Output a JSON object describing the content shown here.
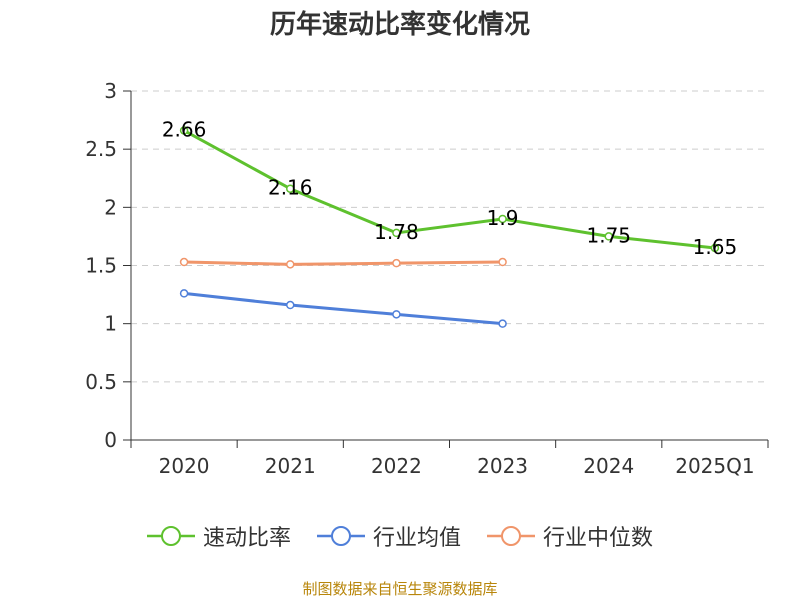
{
  "title": "历年速动比率变化情况",
  "source": "制图数据来自恒生聚源数据库",
  "chart_data": {
    "type": "line",
    "categories": [
      "2020",
      "2021",
      "2022",
      "2023",
      "2024",
      "2025Q1"
    ],
    "ylim": [
      0,
      3
    ],
    "yticks": [
      "0",
      "0.5",
      "1",
      "1.5",
      "2",
      "2.5",
      "3"
    ],
    "grid": true,
    "legend_position": "bottom",
    "series": [
      {
        "name": "速动比率",
        "color": "#5ec12e",
        "values": [
          2.66,
          2.16,
          1.78,
          1.9,
          1.75,
          1.65
        ],
        "labels": [
          "2.66",
          "2.16",
          "1.78",
          "1.9",
          "1.75",
          "1.65"
        ]
      },
      {
        "name": "行业均值",
        "color": "#4f7fd9",
        "values": [
          1.26,
          1.16,
          1.08,
          1.0,
          null,
          null
        ]
      },
      {
        "name": "行业中位数",
        "color": "#f0956a",
        "values": [
          1.53,
          1.51,
          1.52,
          1.53,
          null,
          null
        ]
      }
    ]
  }
}
